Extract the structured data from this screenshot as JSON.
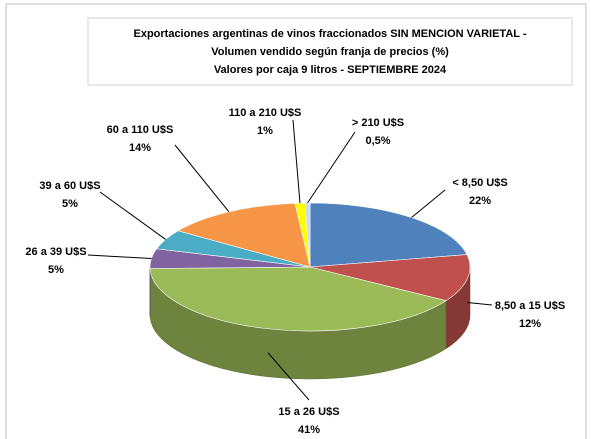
{
  "chart_data": {
    "type": "pie",
    "title": [
      "Exportaciones argentinas de vinos fraccionados SIN MENCION VARIETAL -",
      "Volumen vendido según franja de precios (%)",
      "Valores por caja 9 litros - SEPTIEMBRE 2024"
    ],
    "categories": [
      "< 8,50 U$S",
      "8,50 a 15 U$S",
      "15 a 26 U$S",
      "26 a 39 U$S",
      "39 a 60 U$S",
      "60 a 110 U$S",
      "110 a 210 U$S",
      "> 210 U$S"
    ],
    "values": [
      22,
      12,
      41,
      5,
      5,
      14,
      1,
      0.5
    ],
    "value_labels": [
      "22%",
      "12%",
      "41%",
      "5%",
      "5%",
      "14%",
      "1%",
      "0,5%"
    ],
    "colors": [
      "#4f81bd",
      "#c0504d",
      "#9bbb59",
      "#8064a2",
      "#4bacc6",
      "#f79646",
      "#ffff00",
      "#c6d9f1"
    ]
  }
}
